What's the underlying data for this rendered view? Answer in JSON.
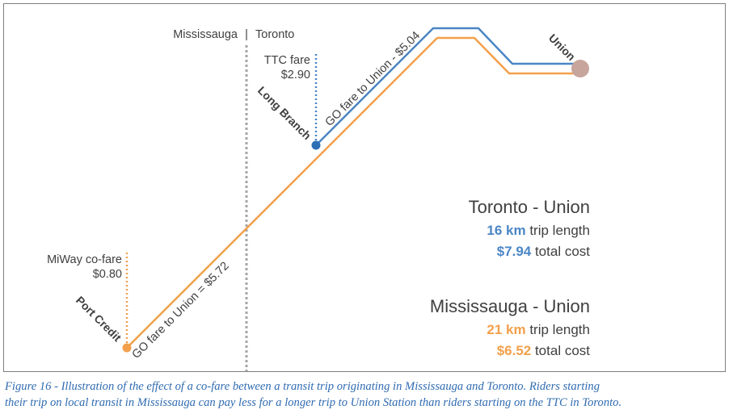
{
  "colors": {
    "toronto_route": "#4a86c5",
    "mississauga_route": "#f2a04b",
    "union_station": "#c7a59c",
    "divider": "#a6a6a6",
    "text": "#404040",
    "caption": "#2f6bb0"
  },
  "region_labels": {
    "west": "Mississauga",
    "separator": "|",
    "east": "Toronto"
  },
  "stations": {
    "union": "Union",
    "long_branch": "Long Branch",
    "port_credit": "Port Credit"
  },
  "fares": {
    "ttc_label": "TTC fare",
    "ttc_value": "$2.90",
    "miway_label": "MiWay co-fare",
    "miway_value": "$0.80",
    "go_toronto": "GO fare to Union - $5.04",
    "go_mississauga": "GO fare to Union = $5.72"
  },
  "summaries": [
    {
      "title": "Toronto - Union",
      "km": "16 km",
      "km_suffix": " trip length",
      "cost": "$7.94",
      "cost_suffix": " total cost",
      "color": "#4a86c5"
    },
    {
      "title": "Mississauga - Union",
      "km": "21 km",
      "km_suffix": " trip length",
      "cost": "$6.52",
      "cost_suffix": " total cost",
      "color": "#f2a04b"
    }
  ],
  "caption": {
    "line1": "Figure 16 - Illustration of the effect of a co-fare between a transit trip originating in Mississauga and Toronto. Riders starting",
    "line2": "their trip on local transit in Mississauga can pay less for a longer trip to Union Station than riders starting on the TTC in Toronto."
  }
}
